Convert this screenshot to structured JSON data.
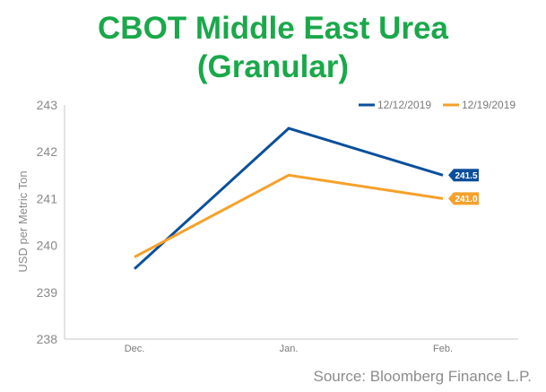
{
  "chart_data": {
    "type": "line",
    "title_lines": [
      "CBOT Middle East Urea",
      "(Granular)"
    ],
    "ylabel": "USD per Metric Ton",
    "xlabel": "",
    "categories": [
      "Dec.",
      "Jan.",
      "Feb."
    ],
    "ylim": [
      238,
      243
    ],
    "yticks": [
      "238",
      "239",
      "240",
      "241",
      "242",
      "243"
    ],
    "grid": false,
    "legend_position": "top-right",
    "series": [
      {
        "name": "12/12/2019",
        "values": [
          239.5,
          242.5,
          241.5
        ],
        "color": "#0b4f9c",
        "end_label": "241.5"
      },
      {
        "name": "12/19/2019",
        "values": [
          239.75,
          241.5,
          241.0
        ],
        "color": "#f5a12b",
        "end_label": "241.0"
      }
    ],
    "source": "Source: Bloomberg Finance L.P."
  }
}
